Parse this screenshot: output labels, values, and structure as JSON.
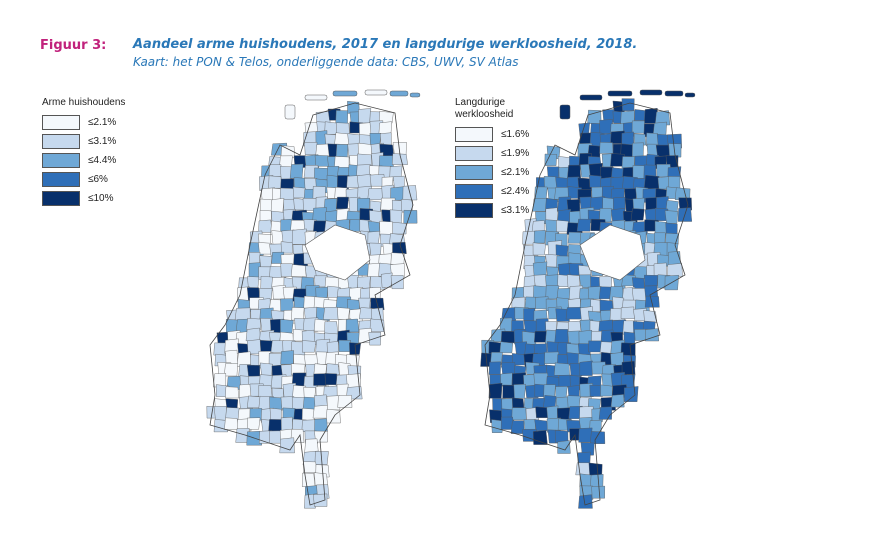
{
  "figure": {
    "label": "Figuur 3:",
    "title": "Aandeel arme huishoudens, 2017 en langdurige werkloosheid, 2018.",
    "subtitle": "Kaart: het PON & Telos, onderliggende data: CBS, UWV, SV Atlas"
  },
  "colors": {
    "c1": "#f4f8fc",
    "c2": "#c6d9ee",
    "c3": "#6fa8d6",
    "c4": "#2f6fb8",
    "c5": "#08306b",
    "border": "#5a5a5a"
  },
  "maps": [
    {
      "legend_title": "Arme huishoudens",
      "legend": [
        {
          "label": "≤2.1%",
          "color": "#f4f8fc"
        },
        {
          "label": "≤3.1%",
          "color": "#c6d9ee"
        },
        {
          "label": "≤4.4%",
          "color": "#6fa8d6"
        },
        {
          "label": "≤6%",
          "color": "#2f6fb8"
        },
        {
          "label": "≤10%",
          "color": "#08306b"
        }
      ]
    },
    {
      "legend_title": "Langdurige werkloosheid",
      "legend": [
        {
          "label": "≤1.6%",
          "color": "#f4f8fc"
        },
        {
          "label": "≤1.9%",
          "color": "#c6d9ee"
        },
        {
          "label": "≤2.1%",
          "color": "#6fa8d6"
        },
        {
          "label": "≤2.4%",
          "color": "#2f6fb8"
        },
        {
          "label": "≤3.1%",
          "color": "#08306b"
        }
      ]
    }
  ]
}
